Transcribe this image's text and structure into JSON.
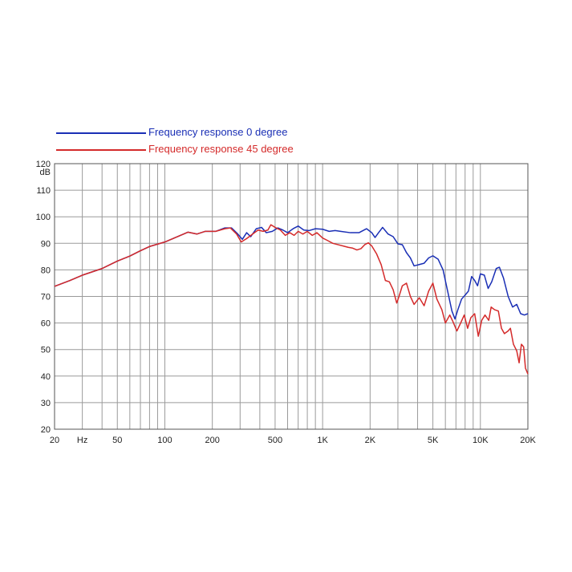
{
  "chart_data": {
    "type": "line",
    "xscale": "log",
    "xlim": [
      20,
      20000
    ],
    "ylim": [
      20,
      120
    ],
    "xlabel": "",
    "ylabel": "",
    "grid": true,
    "legend_placement": "top-left",
    "x_ticks": [
      {
        "value": 20,
        "label": "20"
      },
      {
        "value": 30,
        "label": "Hz"
      },
      {
        "value": 50,
        "label": "50"
      },
      {
        "value": 100,
        "label": "100"
      },
      {
        "value": 200,
        "label": "200"
      },
      {
        "value": 500,
        "label": "500"
      },
      {
        "value": 1000,
        "label": "1K"
      },
      {
        "value": 2000,
        "label": "2K"
      },
      {
        "value": 5000,
        "label": "5K"
      },
      {
        "value": 10000,
        "label": "10K"
      },
      {
        "value": 20000,
        "label": "20K"
      }
    ],
    "y_ticks": [
      {
        "value": 120,
        "label": "120"
      },
      {
        "value": 117,
        "label": "dB"
      },
      {
        "value": 110,
        "label": "110"
      },
      {
        "value": 100,
        "label": "100"
      },
      {
        "value": 90,
        "label": "90"
      },
      {
        "value": 80,
        "label": "80"
      },
      {
        "value": 70,
        "label": "70"
      },
      {
        "value": 60,
        "label": "60"
      },
      {
        "value": 50,
        "label": "50"
      },
      {
        "value": 40,
        "label": "40"
      },
      {
        "value": 30,
        "label": "30"
      },
      {
        "value": 20,
        "label": "20"
      }
    ],
    "series": [
      {
        "name": "Frequency response 0 degree",
        "color": "#1a2fb5",
        "points": [
          [
            20,
            73.8
          ],
          [
            25,
            76
          ],
          [
            30,
            78
          ],
          [
            40,
            80.5
          ],
          [
            50,
            83.3
          ],
          [
            60,
            85.2
          ],
          [
            70,
            87.2
          ],
          [
            80,
            88.8
          ],
          [
            100,
            90.5
          ],
          [
            120,
            92.5
          ],
          [
            140,
            94.2
          ],
          [
            160,
            93.5
          ],
          [
            180,
            94.5
          ],
          [
            210,
            94.5
          ],
          [
            240,
            95.8
          ],
          [
            265,
            95.8
          ],
          [
            290,
            93.5
          ],
          [
            310,
            91.5
          ],
          [
            330,
            94
          ],
          [
            350,
            92.5
          ],
          [
            380,
            95.5
          ],
          [
            410,
            96
          ],
          [
            440,
            94
          ],
          [
            480,
            94.5
          ],
          [
            520,
            95.8
          ],
          [
            560,
            95
          ],
          [
            600,
            94
          ],
          [
            650,
            95.5
          ],
          [
            700,
            96.5
          ],
          [
            760,
            95
          ],
          [
            820,
            94.8
          ],
          [
            900,
            95.5
          ],
          [
            1000,
            95.3
          ],
          [
            1100,
            94.5
          ],
          [
            1200,
            94.8
          ],
          [
            1300,
            94.5
          ],
          [
            1500,
            94
          ],
          [
            1700,
            94
          ],
          [
            1900,
            95.5
          ],
          [
            2050,
            94
          ],
          [
            2150,
            92.2
          ],
          [
            2250,
            93.8
          ],
          [
            2400,
            96
          ],
          [
            2600,
            93.5
          ],
          [
            2800,
            92.5
          ],
          [
            3000,
            89.8
          ],
          [
            3200,
            89.5
          ],
          [
            3400,
            86.5
          ],
          [
            3600,
            84.5
          ],
          [
            3800,
            81.5
          ],
          [
            4100,
            82
          ],
          [
            4400,
            82.5
          ],
          [
            4700,
            84.5
          ],
          [
            5000,
            85.3
          ],
          [
            5400,
            84
          ],
          [
            5800,
            80
          ],
          [
            6200,
            72
          ],
          [
            6600,
            64.5
          ],
          [
            6900,
            61.5
          ],
          [
            7200,
            65
          ],
          [
            7600,
            69
          ],
          [
            8000,
            70.5
          ],
          [
            8400,
            72
          ],
          [
            8800,
            77.5
          ],
          [
            9200,
            76
          ],
          [
            9600,
            74
          ],
          [
            10000,
            78.5
          ],
          [
            10600,
            78
          ],
          [
            11200,
            73
          ],
          [
            11800,
            75.5
          ],
          [
            12600,
            80.5
          ],
          [
            13200,
            81
          ],
          [
            14000,
            77
          ],
          [
            15000,
            70
          ],
          [
            16000,
            66
          ],
          [
            17000,
            67
          ],
          [
            18000,
            63.5
          ],
          [
            19000,
            63
          ],
          [
            20000,
            63.5
          ]
        ]
      },
      {
        "name": "Frequency response 45 degree",
        "color": "#d42a2a",
        "points": [
          [
            20,
            73.8
          ],
          [
            25,
            76
          ],
          [
            30,
            78
          ],
          [
            40,
            80.5
          ],
          [
            50,
            83.3
          ],
          [
            60,
            85.2
          ],
          [
            70,
            87.2
          ],
          [
            80,
            88.8
          ],
          [
            100,
            90.5
          ],
          [
            120,
            92.5
          ],
          [
            140,
            94.2
          ],
          [
            160,
            93.5
          ],
          [
            180,
            94.5
          ],
          [
            210,
            94.5
          ],
          [
            240,
            95.5
          ],
          [
            260,
            95.8
          ],
          [
            285,
            93.5
          ],
          [
            305,
            90.5
          ],
          [
            330,
            91.8
          ],
          [
            360,
            93.5
          ],
          [
            390,
            95
          ],
          [
            420,
            94.5
          ],
          [
            450,
            95
          ],
          [
            470,
            97
          ],
          [
            500,
            96
          ],
          [
            540,
            95
          ],
          [
            580,
            93
          ],
          [
            620,
            94
          ],
          [
            660,
            93
          ],
          [
            700,
            94.5
          ],
          [
            750,
            93.5
          ],
          [
            800,
            94.5
          ],
          [
            860,
            93
          ],
          [
            920,
            94
          ],
          [
            1000,
            92
          ],
          [
            1080,
            91
          ],
          [
            1160,
            90
          ],
          [
            1250,
            89.5
          ],
          [
            1350,
            89
          ],
          [
            1450,
            88.5
          ],
          [
            1550,
            88.2
          ],
          [
            1650,
            87.5
          ],
          [
            1750,
            88
          ],
          [
            1850,
            89.5
          ],
          [
            1950,
            90.2
          ],
          [
            2050,
            89
          ],
          [
            2200,
            86
          ],
          [
            2350,
            82
          ],
          [
            2500,
            76
          ],
          [
            2650,
            75.5
          ],
          [
            2800,
            72.5
          ],
          [
            2950,
            67.5
          ],
          [
            3050,
            70
          ],
          [
            3200,
            74
          ],
          [
            3400,
            75
          ],
          [
            3600,
            70
          ],
          [
            3800,
            67
          ],
          [
            4100,
            69.5
          ],
          [
            4400,
            66.5
          ],
          [
            4700,
            72
          ],
          [
            5000,
            75
          ],
          [
            5300,
            69
          ],
          [
            5700,
            65
          ],
          [
            6000,
            60
          ],
          [
            6400,
            63
          ],
          [
            6700,
            60.5
          ],
          [
            7100,
            57
          ],
          [
            7500,
            60
          ],
          [
            7900,
            63
          ],
          [
            8300,
            58
          ],
          [
            8700,
            62
          ],
          [
            9200,
            63.5
          ],
          [
            9700,
            55
          ],
          [
            10200,
            61
          ],
          [
            10700,
            63
          ],
          [
            11300,
            61
          ],
          [
            11700,
            66
          ],
          [
            12300,
            65
          ],
          [
            13000,
            64.5
          ],
          [
            13600,
            58
          ],
          [
            14200,
            56
          ],
          [
            15000,
            57
          ],
          [
            15500,
            58
          ],
          [
            16200,
            52
          ],
          [
            17000,
            49.5
          ],
          [
            17600,
            45
          ],
          [
            18200,
            52
          ],
          [
            18800,
            51
          ],
          [
            19300,
            43
          ],
          [
            20000,
            40.8
          ]
        ]
      }
    ]
  }
}
